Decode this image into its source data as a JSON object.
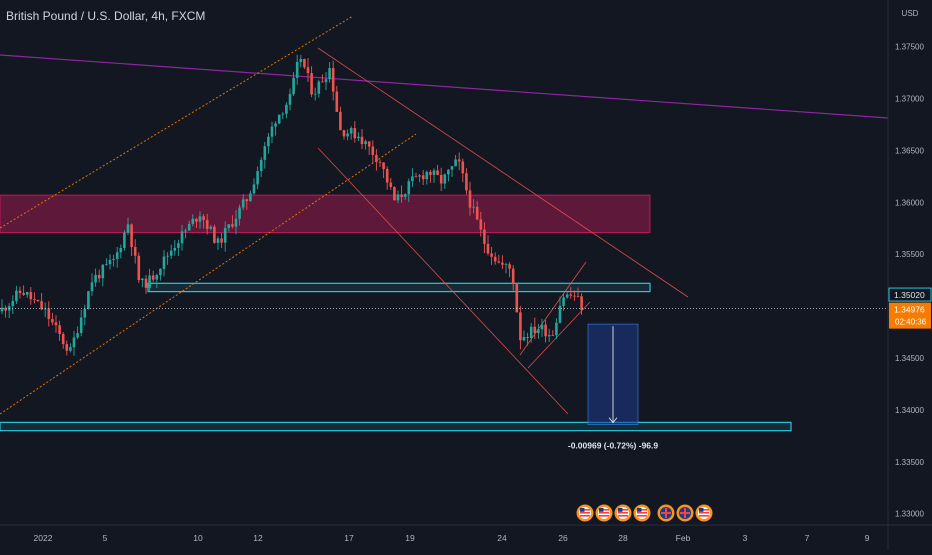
{
  "header": {
    "title": "British Pound / U.S. Dollar, 4h, FXCM"
  },
  "chart_data": {
    "type": "candlestick",
    "title": "British Pound / U.S. Dollar, 4h, FXCM",
    "currency": "USD",
    "ylim": [
      1.3265,
      1.3795
    ],
    "y_ticks": [
      "1.37500",
      "1.37000",
      "1.36500",
      "1.36000",
      "1.35500",
      "1.35000",
      "1.34500",
      "1.34000",
      "1.33500",
      "1.33000"
    ],
    "x_ticks": [
      "2022",
      "5",
      "10",
      "12",
      "17",
      "19",
      "24",
      "26",
      "28",
      "Feb",
      "3",
      "7",
      "9"
    ],
    "price_labels": [
      {
        "value": 1.3502,
        "text": "1.35020",
        "style": "outline"
      },
      {
        "value": 1.34976,
        "text": "1.34976",
        "countdown": "02:40:36",
        "style": "current"
      }
    ],
    "zones": [
      {
        "name": "supply-zone",
        "y1": 1.3607,
        "y2": 1.3571,
        "color": "#d81b60"
      },
      {
        "name": "resistance-box",
        "y1": 1.3522,
        "y2": 1.3514,
        "color": "#26c6da"
      },
      {
        "name": "target-box",
        "y1": 1.3388,
        "y2": 1.338,
        "color": "#26c6da"
      }
    ],
    "measure": {
      "from": 1.34827,
      "to": 1.33858,
      "label": "-0.00969 (-0.72%) -96.9",
      "color": "#1e3a8a"
    },
    "current_price": 1.34976,
    "colors": {
      "up": "#26a69a",
      "down": "#ef5350",
      "trend": "#9c27b0",
      "channel": "#f57c00"
    },
    "event_icons": [
      "us-flag-icon",
      "us-flag-icon",
      "us-flag-icon",
      "us-flag-icon",
      "uk-flag-icon",
      "uk-flag-icon",
      "us-flag-icon"
    ]
  }
}
